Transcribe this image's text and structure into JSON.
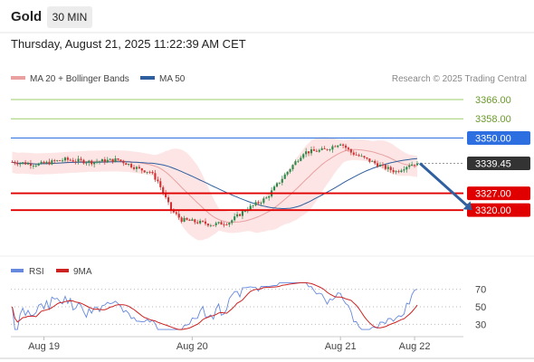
{
  "header": {
    "instrument": "Gold",
    "timeframe": "30 MIN",
    "datetime": "Thursday, August 21, 2025 11:22:39 AM CET"
  },
  "legend": {
    "bollinger": "MA 20 + Bollinger Bands",
    "ma50": "MA 50",
    "credit": "Research © 2025 Trading Central",
    "rsi": "RSI",
    "rsi_ma": "9MA"
  },
  "colors": {
    "candle_up": "#2a8a4a",
    "candle_down": "#d13030",
    "bollinger_fill": "#fde0e0",
    "ma20": "#e8a0a0",
    "ma50": "#2f5f9e",
    "resistance": "#9bcf6a",
    "pivot": "#2d6fe0",
    "support": "#e00000",
    "current": "#333333",
    "arrow": "#2f5f9e",
    "rsi": "#6688dd",
    "rsi_ma": "#cc2222"
  },
  "chart_data": [
    {
      "type": "candlestick",
      "levels": [
        {
          "name": "resistance",
          "value": 3366.0,
          "label": "3366.00",
          "style": "resistance"
        },
        {
          "name": "resistance",
          "value": 3358.0,
          "label": "3358.00",
          "style": "resistance"
        },
        {
          "name": "pivot",
          "value": 3350.0,
          "label": "3350.00",
          "style": "pivot"
        },
        {
          "name": "current-price",
          "value": 3339.45,
          "label": "3339.45",
          "style": "current"
        },
        {
          "name": "support",
          "value": 3327.0,
          "label": "3327.00",
          "style": "support"
        },
        {
          "name": "support",
          "value": 3320.0,
          "label": "3320.00",
          "style": "support"
        }
      ],
      "ylim": [
        3302,
        3372
      ],
      "x_labels": [
        {
          "label": "Aug 19",
          "index": 12
        },
        {
          "label": "Aug 20",
          "index": 68
        },
        {
          "label": "Aug 21",
          "index": 124
        },
        {
          "label": "Aug 22",
          "index": 152
        }
      ],
      "candle_count": 160,
      "last_candle_index": 153,
      "forecast": {
        "from": 3339.45,
        "to": 3320.0,
        "steps": 9
      },
      "ma20_color": "#e8a0a0",
      "ma50_color": "#2f5f9e"
    },
    {
      "type": "line",
      "name": "rsi-panel",
      "ylim": [
        20,
        80
      ],
      "y_ticks": [
        70,
        50,
        30
      ],
      "series": [
        {
          "name": "RSI",
          "color": "#6688dd"
        },
        {
          "name": "9MA",
          "color": "#cc2222"
        }
      ]
    }
  ]
}
